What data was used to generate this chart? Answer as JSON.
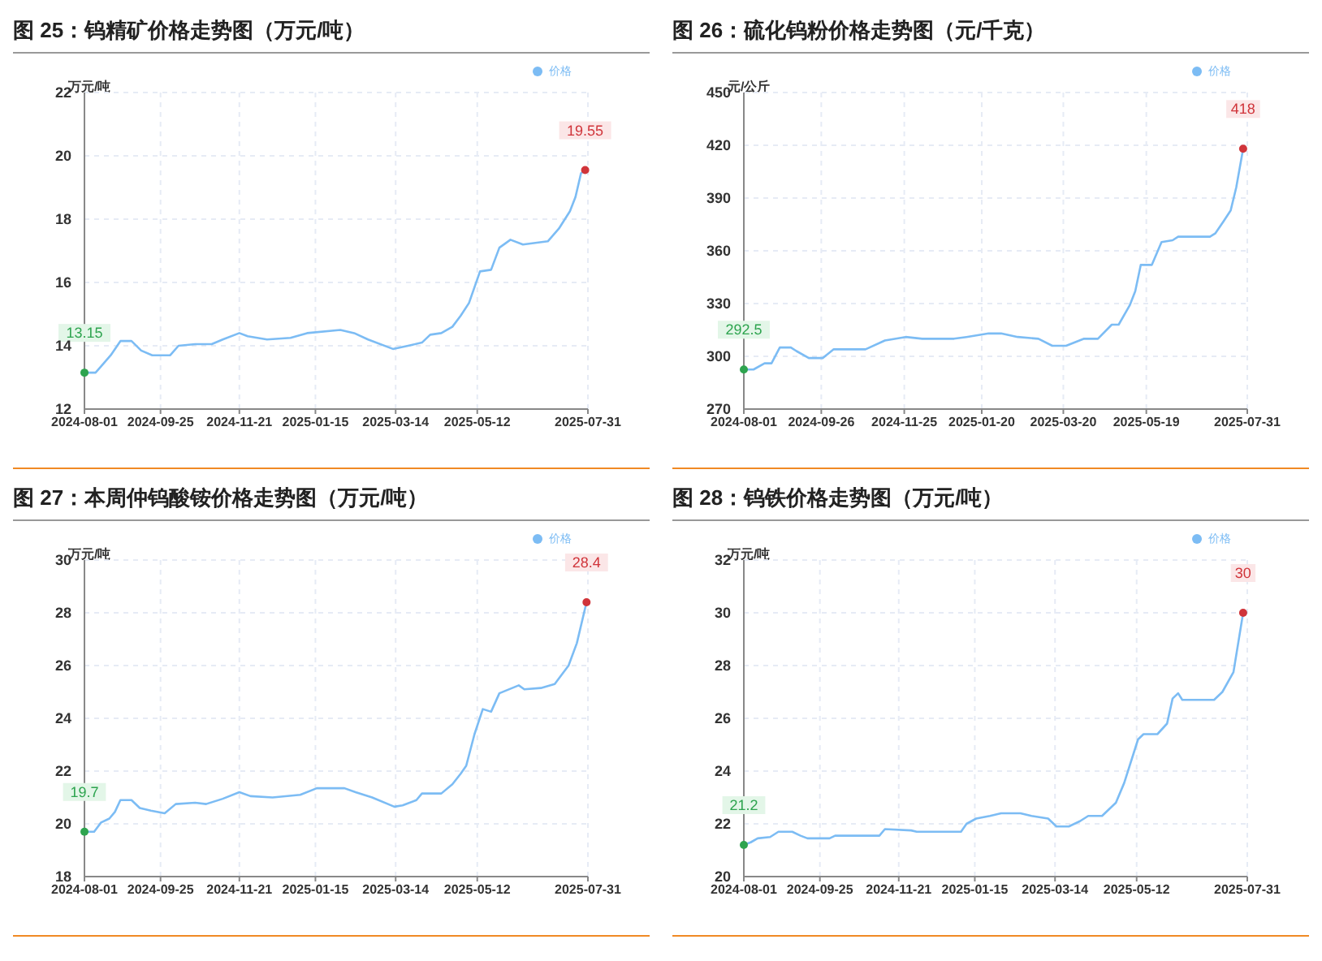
{
  "chart_data": [
    {
      "type": "line",
      "title": "图 25：钨精矿价格走势图（万元/吨）",
      "ylabel": "万元/吨",
      "legend": "top right",
      "grid": true,
      "marker": "none",
      "line_style": "solid",
      "xlim": [
        "2024-08-01",
        "2025-07-31"
      ],
      "xticks": [
        "2024-08-01",
        "2024-09-25",
        "2024-11-21",
        "2025-01-15",
        "2025-03-14",
        "2025-05-12",
        "2025-07-31"
      ],
      "ylim": [
        12,
        22
      ],
      "yticks": [
        12,
        14,
        16,
        18,
        20,
        22
      ],
      "x": [
        "2024-08-01",
        "2024-08-09",
        "2024-08-12",
        "2024-08-20",
        "2024-08-27",
        "2024-09-04",
        "2024-09-11",
        "2024-09-19",
        "2024-10-02",
        "2024-10-08",
        "2024-10-20",
        "2024-11-01",
        "2024-11-09",
        "2024-11-21",
        "2024-11-27",
        "2024-12-11",
        "2024-12-28",
        "2025-01-09",
        "2025-02-02",
        "2025-02-12",
        "2025-02-22",
        "2025-03-12",
        "2025-03-23",
        "2025-04-02",
        "2025-04-08",
        "2025-04-16",
        "2025-04-24",
        "2025-04-30",
        "2025-05-06",
        "2025-05-14",
        "2025-05-22",
        "2025-05-28",
        "2025-06-05",
        "2025-06-14",
        "2025-07-02",
        "2025-07-10",
        "2025-07-18",
        "2025-07-22",
        "2025-07-26",
        "2025-07-29"
      ],
      "series": [
        {
          "name": "价格",
          "color": "#7cbcf4",
          "values": [
            13.15,
            13.15,
            13.3,
            13.7,
            14.15,
            14.15,
            13.85,
            13.7,
            13.7,
            14.0,
            14.05,
            14.05,
            14.2,
            14.4,
            14.3,
            14.2,
            14.25,
            14.4,
            14.5,
            14.4,
            14.2,
            13.9,
            14.0,
            14.1,
            14.35,
            14.4,
            14.6,
            14.95,
            15.35,
            16.35,
            16.4,
            17.1,
            17.35,
            17.2,
            17.3,
            17.7,
            18.25,
            18.7,
            19.45,
            19.55
          ]
        }
      ],
      "annotations": [
        {
          "text": "13.15",
          "x": "2024-08-01",
          "y": 13.15
        },
        {
          "text": "19.55",
          "x": "2025-07-29",
          "y": 19.55
        }
      ]
    },
    {
      "type": "line",
      "title": "图 26：硫化钨粉价格走势图（元/千克）",
      "ylabel": "元/公斤",
      "legend": "top right",
      "grid": true,
      "marker": "none",
      "line_style": "solid",
      "xlim": [
        "2024-08-01",
        "2025-07-31"
      ],
      "xticks": [
        "2024-08-01",
        "2024-09-26",
        "2024-11-25",
        "2025-01-20",
        "2025-03-20",
        "2025-05-19",
        "2025-07-31"
      ],
      "ylim": [
        270,
        450
      ],
      "yticks": [
        270,
        300,
        330,
        360,
        390,
        420,
        450
      ],
      "x": [
        "2024-08-01",
        "2024-08-08",
        "2024-08-16",
        "2024-08-21",
        "2024-08-27",
        "2024-09-04",
        "2024-09-08",
        "2024-09-17",
        "2024-09-27",
        "2024-10-05",
        "2024-10-28",
        "2024-11-11",
        "2024-11-26",
        "2024-12-08",
        "2024-12-31",
        "2025-01-09",
        "2025-01-25",
        "2025-02-03",
        "2025-02-15",
        "2025-03-02",
        "2025-03-12",
        "2025-03-22",
        "2025-04-04",
        "2025-04-14",
        "2025-04-24",
        "2025-04-29",
        "2025-05-07",
        "2025-05-11",
        "2025-05-15",
        "2025-05-23",
        "2025-05-30",
        "2025-06-07",
        "2025-06-11",
        "2025-07-04",
        "2025-07-08",
        "2025-07-14",
        "2025-07-19",
        "2025-07-23",
        "2025-07-28",
        "2025-07-30"
      ],
      "series": [
        {
          "name": "价格",
          "color": "#7cbcf4",
          "values": [
            292.5,
            292.5,
            296,
            296,
            305,
            305,
            303,
            299,
            299,
            304,
            304,
            309,
            311,
            310,
            310,
            311,
            313,
            313,
            311,
            310,
            306,
            306,
            310,
            310,
            318,
            318,
            329,
            337,
            352,
            352,
            365,
            366,
            368,
            368,
            370,
            377,
            383,
            396,
            418,
            418
          ]
        }
      ],
      "annotations": [
        {
          "text": "292.5",
          "x": "2024-08-01",
          "y": 292.5
        },
        {
          "text": "418",
          "x": "2025-07-28",
          "y": 418
        }
      ]
    },
    {
      "type": "line",
      "title": "图 27：本周仲钨酸铵价格走势图（万元/吨）",
      "ylabel": "万元/吨",
      "legend": "top right",
      "grid": true,
      "marker": "none",
      "line_style": "solid",
      "xlim": [
        "2024-08-01",
        "2025-07-31"
      ],
      "xticks": [
        "2024-08-01",
        "2024-09-25",
        "2024-11-21",
        "2025-01-15",
        "2025-03-14",
        "2025-05-12",
        "2025-07-31"
      ],
      "ylim": [
        18,
        30
      ],
      "yticks": [
        18,
        20,
        22,
        24,
        26,
        28,
        30
      ],
      "x": [
        "2024-08-01",
        "2024-08-08",
        "2024-08-13",
        "2024-08-19",
        "2024-08-23",
        "2024-08-27",
        "2024-09-04",
        "2024-09-10",
        "2024-09-18",
        "2024-09-28",
        "2024-10-06",
        "2024-10-20",
        "2024-10-28",
        "2024-11-09",
        "2024-11-21",
        "2024-11-29",
        "2024-12-15",
        "2025-01-04",
        "2025-01-16",
        "2025-02-05",
        "2025-02-13",
        "2025-02-25",
        "2025-03-13",
        "2025-03-19",
        "2025-03-29",
        "2025-04-02",
        "2025-04-16",
        "2025-04-24",
        "2025-04-30",
        "2025-05-04",
        "2025-05-10",
        "2025-05-16",
        "2025-05-22",
        "2025-05-28",
        "2025-06-11",
        "2025-06-15",
        "2025-06-27",
        "2025-07-07",
        "2025-07-17",
        "2025-07-23",
        "2025-07-30"
      ],
      "series": [
        {
          "name": "价格",
          "color": "#7cbcf4",
          "values": [
            19.7,
            19.7,
            20.05,
            20.2,
            20.45,
            20.9,
            20.9,
            20.6,
            20.5,
            20.4,
            20.75,
            20.8,
            20.75,
            20.95,
            21.2,
            21.05,
            21.0,
            21.1,
            21.35,
            21.35,
            21.2,
            21.0,
            20.65,
            20.7,
            20.9,
            21.15,
            21.15,
            21.5,
            21.9,
            22.2,
            23.4,
            24.35,
            24.25,
            24.95,
            25.25,
            25.1,
            25.15,
            25.3,
            26.0,
            26.85,
            28.4
          ]
        }
      ],
      "annotations": [
        {
          "text": "19.7",
          "x": "2024-08-01",
          "y": 19.7
        },
        {
          "text": "28.4",
          "x": "2025-07-30",
          "y": 28.4
        }
      ]
    },
    {
      "type": "line",
      "title": "图 28：钨铁价格走势图（万元/吨）",
      "ylabel": "万元/吨",
      "legend": "top right",
      "grid": true,
      "marker": "none",
      "line_style": "solid",
      "xlim": [
        "2024-08-01",
        "2025-07-31"
      ],
      "xticks": [
        "2024-08-01",
        "2024-09-25",
        "2024-11-21",
        "2025-01-15",
        "2025-03-14",
        "2025-05-12",
        "2025-07-31"
      ],
      "ylim": [
        20,
        32
      ],
      "yticks": [
        20,
        22,
        24,
        26,
        28,
        30,
        32
      ],
      "x": [
        "2024-08-01",
        "2024-08-06",
        "2024-08-11",
        "2024-08-20",
        "2024-08-26",
        "2024-09-05",
        "2024-09-11",
        "2024-09-16",
        "2024-10-02",
        "2024-10-06",
        "2024-11-07",
        "2024-11-11",
        "2024-11-30",
        "2024-12-04",
        "2025-01-05",
        "2025-01-09",
        "2025-01-16",
        "2025-01-26",
        "2025-02-03",
        "2025-02-17",
        "2025-02-25",
        "2025-03-09",
        "2025-03-15",
        "2025-03-24",
        "2025-04-01",
        "2025-04-07",
        "2025-04-17",
        "2025-04-27",
        "2025-05-03",
        "2025-05-13",
        "2025-05-17",
        "2025-05-27",
        "2025-06-03",
        "2025-06-07",
        "2025-06-11",
        "2025-06-14",
        "2025-07-07",
        "2025-07-13",
        "2025-07-21",
        "2025-07-28",
        "2025-07-31"
      ],
      "series": [
        {
          "name": "价格",
          "color": "#7cbcf4",
          "values": [
            21.2,
            21.3,
            21.45,
            21.5,
            21.7,
            21.7,
            21.55,
            21.45,
            21.45,
            21.55,
            21.55,
            21.8,
            21.75,
            21.7,
            21.7,
            22.0,
            22.2,
            22.3,
            22.4,
            22.4,
            22.3,
            22.2,
            21.9,
            21.9,
            22.1,
            22.3,
            22.3,
            22.8,
            23.55,
            25.2,
            25.4,
            25.4,
            25.8,
            26.75,
            26.95,
            26.7,
            26.7,
            27.0,
            27.75,
            30,
            30
          ]
        }
      ],
      "annotations": [
        {
          "text": "21.2",
          "x": "2024-08-01",
          "y": 21.2
        },
        {
          "text": "30",
          "x": "2025-07-28",
          "y": 30
        }
      ]
    }
  ]
}
